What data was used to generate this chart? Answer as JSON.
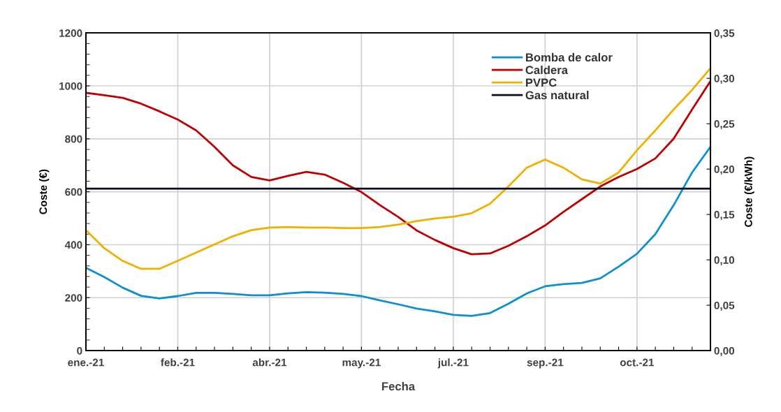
{
  "chart_data": {
    "type": "line",
    "xlabel": "Fecha",
    "ylabel": "Coste (€)",
    "y2label": "Coste (€/kWh)",
    "categories": [
      "ene.-21",
      null,
      null,
      null,
      null,
      "feb.-21",
      null,
      null,
      null,
      null,
      "abr.-21",
      null,
      null,
      null,
      null,
      "may.-21",
      null,
      null,
      null,
      null,
      "jul.-21",
      null,
      null,
      null,
      null,
      "sep.-21",
      null,
      null,
      null,
      null,
      "oct.-21",
      null,
      null,
      null,
      null
    ],
    "series": [
      {
        "name": "Bomba de calor",
        "color": "#0e8fcf",
        "values": [
          313,
          278,
          238,
          207,
          197,
          206,
          218,
          218,
          214,
          209,
          209,
          216,
          221,
          219,
          214,
          206,
          190,
          175,
          159,
          148,
          135,
          131,
          142,
          177,
          216,
          243,
          251,
          256,
          273,
          317,
          366,
          440,
          550,
          673,
          770
        ]
      },
      {
        "name": "Caldera",
        "color": "#c00000",
        "values": [
          974,
          965,
          955,
          933,
          904,
          873,
          832,
          770,
          700,
          656,
          643,
          660,
          675,
          665,
          634,
          599,
          550,
          505,
          454,
          418,
          387,
          364,
          367,
          396,
          432,
          473,
          524,
          572,
          620,
          656,
          686,
          726,
          801,
          911,
          1018
        ]
      },
      {
        "name": "PVPC",
        "color": "#f0b000",
        "values": [
          455,
          387,
          339,
          309,
          309,
          339,
          370,
          401,
          432,
          455,
          465,
          467,
          465,
          465,
          463,
          463,
          467,
          476,
          489,
          499,
          506,
          519,
          555,
          620,
          691,
          722,
          691,
          647,
          631,
          673,
          757,
          832,
          911,
          985,
          1067
        ]
      },
      {
        "name": "Gas natural",
        "color": "#0a0a28",
        "values": [
          612,
          612,
          612,
          612,
          612,
          612,
          612,
          612,
          612,
          612,
          612,
          612,
          612,
          612,
          612,
          612,
          612,
          612,
          612,
          612,
          612,
          612,
          612,
          612,
          612,
          612,
          612,
          612,
          612,
          612,
          612,
          612,
          612,
          612,
          612
        ]
      }
    ],
    "ylim": [
      0,
      1200
    ],
    "yticks": [
      0,
      200,
      400,
      600,
      800,
      1000,
      1200
    ],
    "y2lim": [
      0,
      0.35
    ],
    "y2ticks": [
      {
        "value": 0,
        "label": "0,00"
      },
      {
        "value": 0.05,
        "label": "0,05"
      },
      {
        "value": 0.1,
        "label": "0,10"
      },
      {
        "value": 0.15,
        "label": "0,15"
      },
      {
        "value": 0.2,
        "label": "0,20"
      },
      {
        "value": 0.25,
        "label": "0,25"
      },
      {
        "value": 0.3,
        "label": "0,30"
      },
      {
        "value": 0.35,
        "label": "0,35"
      }
    ],
    "grid": true,
    "legend": "top right",
    "marker": "none",
    "line_style": "solid"
  }
}
